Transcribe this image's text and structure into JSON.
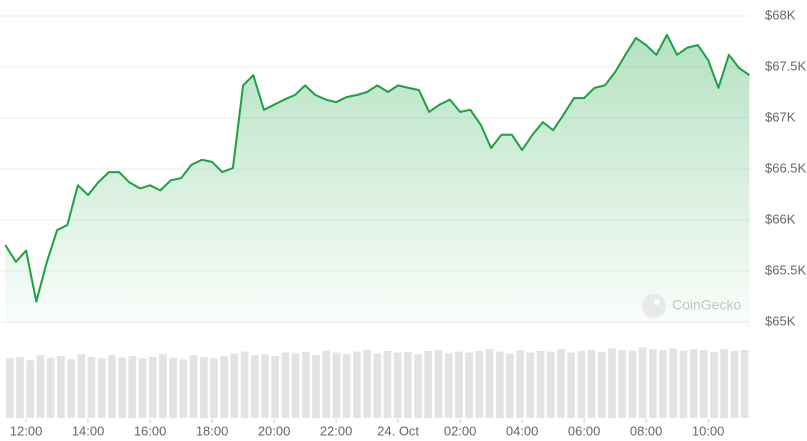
{
  "chart_data": {
    "type": "line",
    "watermark": "CoinGecko",
    "x": [
      -0.67,
      -0.33,
      0,
      0.33,
      0.67,
      1,
      1.33,
      1.67,
      2,
      2.33,
      2.67,
      3,
      3.33,
      3.67,
      4,
      4.33,
      4.67,
      5,
      5.33,
      5.67,
      6,
      6.33,
      6.67,
      7,
      7.33,
      7.67,
      8,
      8.33,
      8.67,
      9,
      9.33,
      9.67,
      10,
      10.33,
      10.67,
      11,
      11.33,
      11.67,
      12,
      12.33,
      12.67,
      13,
      13.33,
      13.67,
      14,
      14.33,
      14.67,
      15,
      15.33,
      15.67,
      16,
      16.33,
      16.67,
      17,
      17.33,
      17.67,
      18,
      18.33,
      18.67,
      19,
      19.33,
      19.67,
      20,
      20.33,
      20.67,
      21,
      21.33,
      21.67,
      22,
      22.33,
      22.67,
      23,
      23.33
    ],
    "series": [
      {
        "color": "#1aa33f",
        "values": [
          65755,
          65590,
          65700,
          65200,
          65590,
          65900,
          65950,
          66340,
          66245,
          66370,
          66470,
          66470,
          66370,
          66310,
          66340,
          66290,
          66390,
          66410,
          66540,
          66590,
          66570,
          66470,
          66510,
          67320,
          67420,
          67080,
          67130,
          67180,
          67225,
          67320,
          67225,
          67180,
          67155,
          67205,
          67225,
          67255,
          67320,
          67255,
          67320,
          67295,
          67275,
          67060,
          67130,
          67180,
          67060,
          67080,
          66930,
          66705,
          66835,
          66835,
          66685,
          66835,
          66960,
          66880,
          67030,
          67195,
          67195,
          67295,
          67320,
          67450,
          67620,
          67785,
          67715,
          67620,
          67815,
          67620,
          67690,
          67715,
          67570,
          67295,
          67620,
          67490,
          67420
        ]
      }
    ],
    "volume": {
      "color": "#e3e3e3",
      "ylim": [
        0,
        100
      ],
      "values": [
        70,
        72,
        68,
        74,
        71,
        73,
        69,
        75,
        72,
        70,
        74,
        71,
        73,
        70,
        72,
        75,
        71,
        69,
        74,
        72,
        70,
        73,
        76,
        78,
        74,
        75,
        73,
        77,
        76,
        78,
        74,
        79,
        77,
        75,
        78,
        80,
        76,
        79,
        77,
        78,
        75,
        79,
        80,
        76,
        78,
        77,
        79,
        81,
        78,
        76,
        80,
        77,
        79,
        78,
        81,
        77,
        79,
        80,
        78,
        82,
        80,
        79,
        83,
        81,
        80,
        82,
        79,
        81,
        80,
        78,
        81,
        79,
        80
      ]
    },
    "xlim": [
      -0.68,
      23.35
    ],
    "xticks": [
      {
        "value": 0,
        "label": "12:00"
      },
      {
        "value": 2,
        "label": "14:00"
      },
      {
        "value": 4,
        "label": "16:00"
      },
      {
        "value": 6,
        "label": "18:00"
      },
      {
        "value": 8,
        "label": "20:00"
      },
      {
        "value": 10,
        "label": "22:00"
      },
      {
        "value": 12,
        "label": "24. Oct"
      },
      {
        "value": 14,
        "label": "02:00"
      },
      {
        "value": 16,
        "label": "04:00"
      },
      {
        "value": 18,
        "label": "06:00"
      },
      {
        "value": 20,
        "label": "08:00"
      },
      {
        "value": 22,
        "label": "10:00"
      }
    ],
    "ylim": [
      65000,
      68000
    ],
    "yticks": [
      {
        "value": 65000,
        "label": "$65K"
      },
      {
        "value": 65500,
        "label": "$65.5K"
      },
      {
        "value": 66000,
        "label": "$66K"
      },
      {
        "value": 66500,
        "label": "$66.5K"
      },
      {
        "value": 67000,
        "label": "$67K"
      },
      {
        "value": 67500,
        "label": "$67.5K"
      },
      {
        "value": 68000,
        "label": "$68K"
      }
    ],
    "grid": true
  }
}
